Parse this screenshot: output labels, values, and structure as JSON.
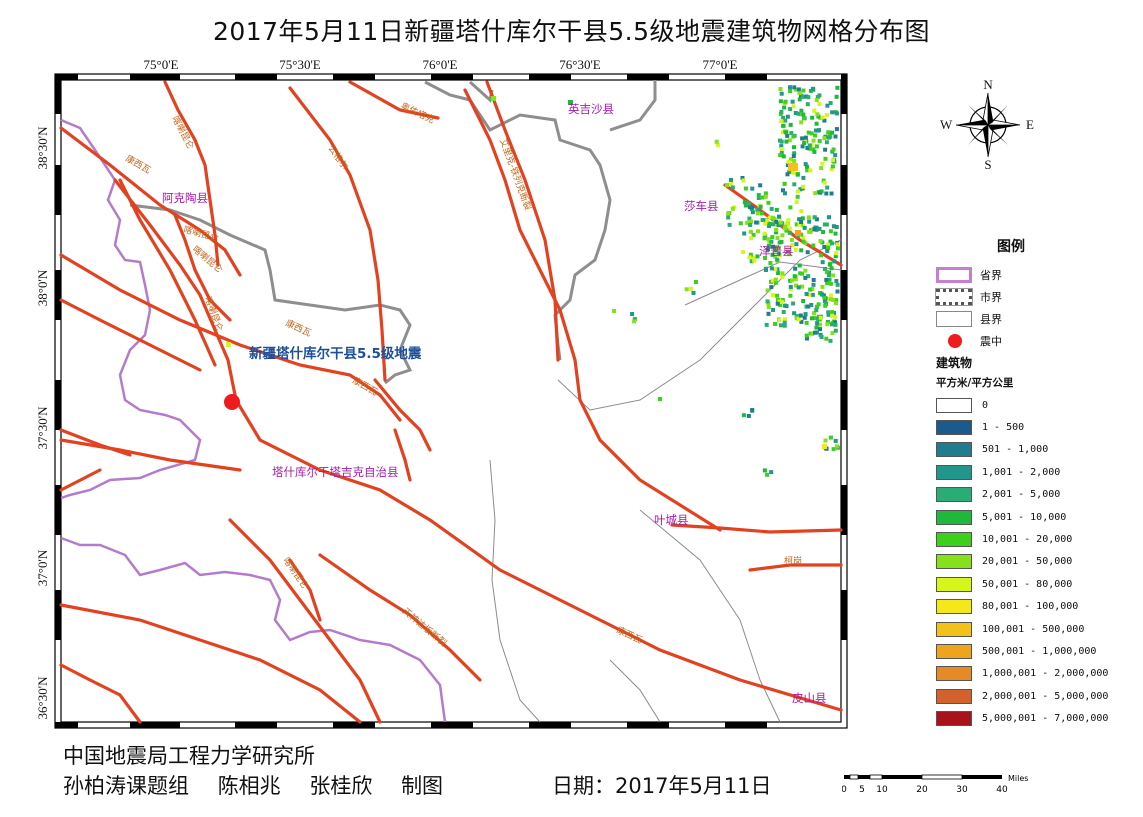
{
  "title": "2017年5月11日新疆塔什库尔干县5.5级地震建筑物网格分布图",
  "map": {
    "lon_ticks": [
      "75°0'E",
      "75°30'E",
      "76°0'E",
      "76°30'E",
      "77°0'E"
    ],
    "lat_ticks": [
      "38°30'N",
      "38°0'N",
      "37°30'N",
      "37°0'N",
      "36°30'N"
    ],
    "counties": [
      "阿克陶县",
      "英吉沙县",
      "莎车县",
      "泽普县",
      "塔什库尔干塔吉克自治县",
      "叶城县",
      "皮山县"
    ],
    "faults": [
      "喀喇昆仑",
      "奥依塔克",
      "公格尔",
      "喀喇昆仑",
      "康西瓦",
      "艾里克-铁列克断裂",
      "康西瓦",
      "喀喇昆仑",
      "康西瓦",
      "天神达坂断裂",
      "喀喇昆仑",
      "康西瓦",
      "柯岗",
      "喀喇昆仑"
    ],
    "earthquake_label": "新疆塔什库尔干县5.5级地震",
    "compass": {
      "n": "N",
      "s": "S",
      "e": "E",
      "w": "W"
    }
  },
  "legend": {
    "title": "图例",
    "boundaries": [
      {
        "label": "省界",
        "color": "#c77dd4"
      },
      {
        "label": "市界",
        "color": "#777777"
      },
      {
        "label": "县界",
        "color": "#aaaaaa"
      },
      {
        "label": "震中",
        "color": "#ee1c1c"
      }
    ],
    "buildings_title": "建筑物",
    "unit": "平方米/平方公里",
    "classes": [
      {
        "label": "0",
        "color": "#ffffff"
      },
      {
        "label": "1 - 500",
        "color": "#1a5a8c"
      },
      {
        "label": "501 - 1,000",
        "color": "#1f7d8f"
      },
      {
        "label": "1,001 - 2,000",
        "color": "#21968a"
      },
      {
        "label": "2,001 - 5,000",
        "color": "#29ad74"
      },
      {
        "label": "5,001 - 10,000",
        "color": "#1fb83c"
      },
      {
        "label": "10,001 - 20,000",
        "color": "#3ccf1d"
      },
      {
        "label": "20,001 - 50,000",
        "color": "#86e01a"
      },
      {
        "label": "50,001 - 80,000",
        "color": "#d6f51a"
      },
      {
        "label": "80,001 - 100,000",
        "color": "#f5e81a"
      },
      {
        "label": "100,001 - 500,000",
        "color": "#f2c21a"
      },
      {
        "label": "500,001 - 1,000,000",
        "color": "#eea41d"
      },
      {
        "label": "1,000,001 - 2,000,000",
        "color": "#e68a26"
      },
      {
        "label": "2,000,001 - 5,000,000",
        "color": "#d2622c"
      },
      {
        "label": "5,000,001 - 7,000,000",
        "color": "#a8121a"
      }
    ]
  },
  "footer": {
    "institute": "中国地震局工程力学研究所",
    "group": "孙柏涛课题组",
    "author1": "陈相兆",
    "author2": "张桂欣",
    "made": "制图",
    "date": "日期：2017年5月11日"
  },
  "scalebar": {
    "ticks": [
      "0",
      "5",
      "10",
      "20",
      "30",
      "40"
    ],
    "unit": "Miles"
  }
}
